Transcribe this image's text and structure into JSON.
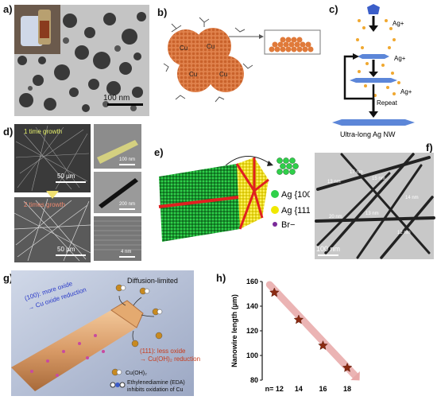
{
  "panels": {
    "a": {
      "label": "a)",
      "scale_bar": "100 nm"
    },
    "b": {
      "label": "b)",
      "particle_label": "Cu"
    },
    "c": {
      "label": "c)",
      "ion": "Ag+",
      "repeat": "Repeat",
      "result": "Ultra-long Ag NW"
    },
    "d": {
      "label": "d)",
      "first": "1 time growth",
      "second": "2 times growth",
      "scale_left_top": "50 µm",
      "scale_left_bottom": "50 µm",
      "scale_right_top": "100 nm",
      "scale_right_mid": "200 nm",
      "scale_right_bottom": "4 nm"
    },
    "e": {
      "label": "e)",
      "legend": [
        "Ag {100}",
        "Ag {111}",
        "Br−"
      ]
    },
    "f": {
      "label": "f)",
      "diameters": [
        "13 nm",
        "17 nm",
        "15 nm",
        "14 nm",
        "20 nm",
        "13 nm",
        "12 nm"
      ],
      "scale_bar": "100 nm"
    },
    "g": {
      "label": "g)",
      "top_text": "Diffusion-limited",
      "face100_line1": "(100): more oxide",
      "face100_line2": "→ Cu oxide reduction",
      "face111_line1": "(111): less oxide",
      "face111_line2": "→ Cu(OH)₂ reduction",
      "legend_cuoh": "Cu(OH)₂",
      "legend_eda_line1": "Ethylenediamine (EDA)",
      "legend_eda_line2": "inhibits oxidation of Cu"
    },
    "h": {
      "label": "h)"
    }
  },
  "chart_data": {
    "type": "scatter",
    "title": "",
    "xlabel": "",
    "ylabel": "Nanowire length (µm)",
    "x_tick_labels": [
      "n= 12",
      "14",
      "16",
      "18"
    ],
    "x": [
      12,
      14,
      16,
      18
    ],
    "y": [
      151,
      129,
      108,
      90
    ],
    "xlim": [
      11,
      19.5
    ],
    "ylim": [
      80,
      160
    ],
    "yticks": [
      80,
      100,
      120,
      140,
      160
    ],
    "marker": "star",
    "colors": {
      "marker": "#8b2a12",
      "trend": "#e8a8a8"
    }
  }
}
